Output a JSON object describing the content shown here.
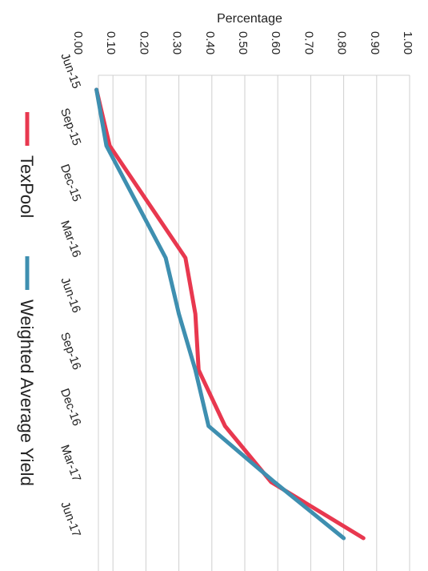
{
  "chart_data": {
    "type": "line",
    "ylabel": "Percentage",
    "xlabel": "",
    "ylim": [
      0,
      1.0
    ],
    "y_ticks": [
      "0.00",
      "0.10",
      "0.20",
      "0.30",
      "0.40",
      "0.50",
      "0.60",
      "0.70",
      "0.80",
      "0.90",
      "1.00"
    ],
    "x_ticks": [
      "Jun-15",
      "Sep-15",
      "Dec-15",
      "Mar-16",
      "Jun-16",
      "Sep-16",
      "Dec-16",
      "Mar-17",
      "Jun-17"
    ],
    "grid": true,
    "legend_position": "bottom",
    "series": [
      {
        "name": "TexPool",
        "color": "#e8384f",
        "x": [
          "Jun-15",
          "Sep-15",
          "Mar-16",
          "Jun-16",
          "Sep-16",
          "Dec-16",
          "Mar-17",
          "Jun-17"
        ],
        "values": [
          0.05,
          0.09,
          0.32,
          0.35,
          0.36,
          0.44,
          0.58,
          0.86
        ]
      },
      {
        "name": "Weighted Average Yield",
        "color": "#3e8fb0",
        "x": [
          "Jun-15",
          "Sep-15",
          "Mar-16",
          "Jun-16",
          "Sep-16",
          "Dec-16",
          "Mar-17",
          "Jun-17"
        ],
        "values": [
          0.05,
          0.08,
          0.26,
          0.3,
          0.35,
          0.39,
          0.59,
          0.8
        ]
      }
    ]
  }
}
